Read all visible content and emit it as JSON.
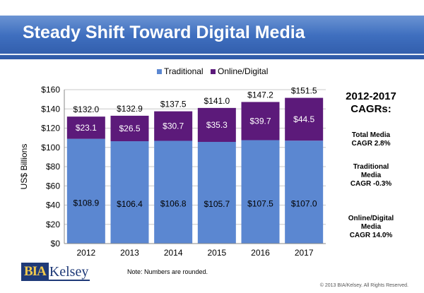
{
  "title": "Steady Shift Toward Digital Media",
  "chart_data": {
    "type": "bar",
    "stacked": true,
    "categories": [
      "2012",
      "2013",
      "2014",
      "2015",
      "2016",
      "2017"
    ],
    "series": [
      {
        "name": "Traditional",
        "values": [
          108.9,
          106.4,
          106.8,
          105.7,
          107.5,
          107.0
        ],
        "color": "#5b87d1"
      },
      {
        "name": "Online/Digital",
        "values": [
          23.1,
          26.5,
          30.7,
          35.3,
          39.7,
          44.5
        ],
        "color": "#5c1a7a"
      }
    ],
    "series_labels": [
      [
        "$108.9",
        "$106.4",
        "$106.8",
        "$105.7",
        "$107.5",
        "$107.0"
      ],
      [
        "$23.1",
        "$26.5",
        "$30.7",
        "$35.3",
        "$39.7",
        "$44.5"
      ]
    ],
    "totals": [
      "$132.0",
      "$132.9",
      "$137.5",
      "$141.0",
      "$147.2",
      "$151.5"
    ],
    "ylabel": "US$ Billions",
    "ylim": [
      0,
      160
    ],
    "yticks": [
      0,
      20,
      40,
      60,
      80,
      100,
      120,
      140,
      160
    ],
    "ytick_labels": [
      "$0",
      "$20",
      "$40",
      "$60",
      "$80",
      "$100",
      "$120",
      "$140",
      "$160"
    ],
    "grid": true,
    "legend_position": "top"
  },
  "cagr": {
    "title": "2012-2017\nCAGRs:",
    "items": [
      "Total Media\nCAGR 2.8%",
      "Traditional\nMedia\nCAGR -0.3%",
      "Online/Digital\nMedia\nCAGR 14.0%"
    ]
  },
  "logo": {
    "bia": "BIA",
    "kelsey": "Kelsey"
  },
  "note": "Note: Numbers are rounded.",
  "copyright": "© 2013 BIA/Kelsey. All Rights Reserved."
}
